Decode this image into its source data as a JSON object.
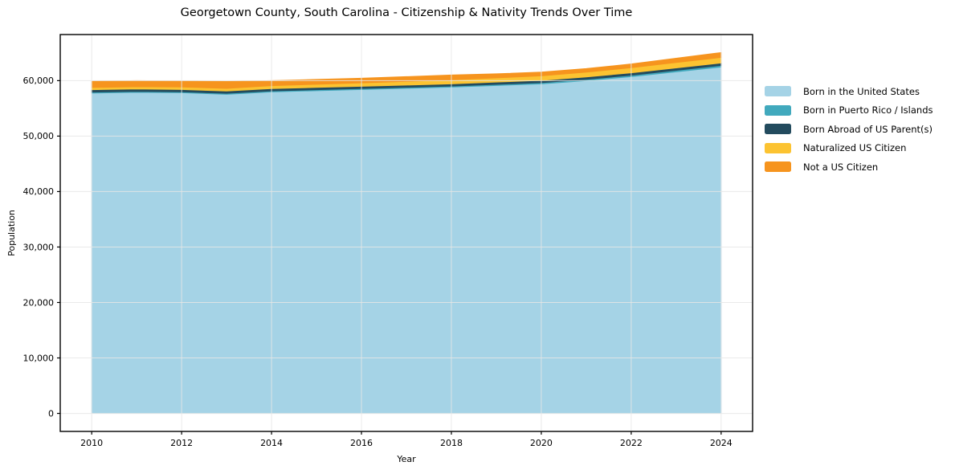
{
  "title": "Georgetown County, South Carolina - Citizenship & Nativity Trends Over Time",
  "axes": {
    "xlabel": "Year",
    "ylabel": "Population"
  },
  "legend": {
    "items": [
      {
        "label": "Born in the United States"
      },
      {
        "label": "Born in Puerto Rico / Islands"
      },
      {
        "label": "Born Abroad of US Parent(s)"
      },
      {
        "label": "Naturalized US Citizen"
      },
      {
        "label": "Not a US Citizen"
      }
    ]
  },
  "chart_data": {
    "type": "area",
    "stacked": true,
    "title": "Georgetown County, South Carolina - Citizenship & Nativity Trends Over Time",
    "xlabel": "Year",
    "ylabel": "Population",
    "x": [
      2010,
      2011,
      2012,
      2013,
      2014,
      2015,
      2016,
      2017,
      2018,
      2019,
      2020,
      2021,
      2022,
      2023,
      2024
    ],
    "series": [
      {
        "name": "Born in the United States",
        "color": "#A5D3E6",
        "values": [
          57760,
          57900,
          57830,
          57540,
          57970,
          58190,
          58400,
          58620,
          58840,
          59130,
          59420,
          60000,
          60720,
          61590,
          62460
        ]
      },
      {
        "name": "Born in Puerto Rico / Islands",
        "color": "#41A9BD",
        "values": [
          180,
          170,
          160,
          170,
          180,
          180,
          180,
          180,
          180,
          200,
          220,
          240,
          260,
          280,
          290
        ]
      },
      {
        "name": "Born Abroad of US Parent(s)",
        "color": "#234B5E",
        "values": [
          430,
          420,
          410,
          420,
          420,
          410,
          400,
          400,
          400,
          410,
          420,
          430,
          430,
          430,
          430
        ]
      },
      {
        "name": "Naturalized US Citizen",
        "color": "#FCC331",
        "values": [
          390,
          420,
          450,
          480,
          520,
          570,
          620,
          670,
          720,
          760,
          800,
          860,
          920,
          970,
          1010
        ]
      },
      {
        "name": "Not a US Citizen",
        "color": "#F6941E",
        "values": [
          1130,
          1090,
          1070,
          1240,
          910,
          860,
          830,
          850,
          870,
          730,
          680,
          640,
          670,
          770,
          870
        ]
      }
    ],
    "xticks": [
      2010,
      2012,
      2014,
      2016,
      2018,
      2020,
      2022,
      2024
    ],
    "yticks": [
      0,
      10000,
      20000,
      30000,
      40000,
      50000,
      60000
    ],
    "xlim": [
      2009.3,
      2024.7
    ],
    "ylim": [
      -3250,
      68310
    ],
    "grid": true,
    "grid_color": "#e7e7e7",
    "frame_color": "#000000",
    "legend_position": "right"
  }
}
